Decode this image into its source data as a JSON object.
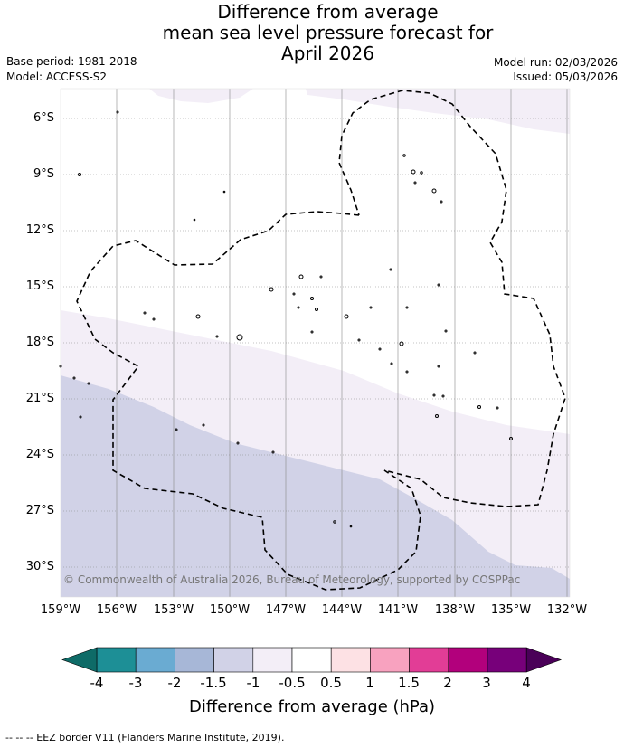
{
  "title": {
    "line1": "Difference from average",
    "line2": "mean sea level pressure forecast for",
    "line3": "April 2026"
  },
  "left_meta": {
    "base_period": "Base period: 1981-2018",
    "model": "Model: ACCESS-S2"
  },
  "right_meta": {
    "model_run": "Model run: 02/03/2026",
    "issued": "Issued: 05/03/2026"
  },
  "lat_labels": [
    "6°S",
    "9°S",
    "12°S",
    "15°S",
    "18°S",
    "21°S",
    "24°S",
    "27°S",
    "30°S"
  ],
  "lon_labels": [
    "159°W",
    "156°W",
    "153°W",
    "150°W",
    "147°W",
    "144°W",
    "141°W",
    "138°W",
    "135°W",
    "132°W"
  ],
  "copyright": "© Commonwealth of Australia 2026, Bureau of Meteorology, supported by COSPPac",
  "colorbar": {
    "ticks": [
      "-4",
      "-3",
      "-2",
      "-1.5",
      "-1",
      "-0.5",
      "0.5",
      "1",
      "1.5",
      "2",
      "3",
      "4"
    ],
    "colors": [
      "#1d8f96",
      "#6aabd2",
      "#a7b7d7",
      "#d1d2e7",
      "#f3eef7",
      "#ffffff",
      "#fde1e4",
      "#f8a2bf",
      "#e23d96",
      "#b2007c",
      "#77007a"
    ],
    "under_color": "#0e6b67",
    "over_color": "#4a0058",
    "label": "Difference from average (hPa)"
  },
  "footer": "-- -- -- EEZ border V11 (Flanders Marine Institute, 2019).",
  "map": {
    "lat_range": [
      -31.5,
      -4.5
    ],
    "lon_range": [
      -159,
      -132
    ]
  }
}
